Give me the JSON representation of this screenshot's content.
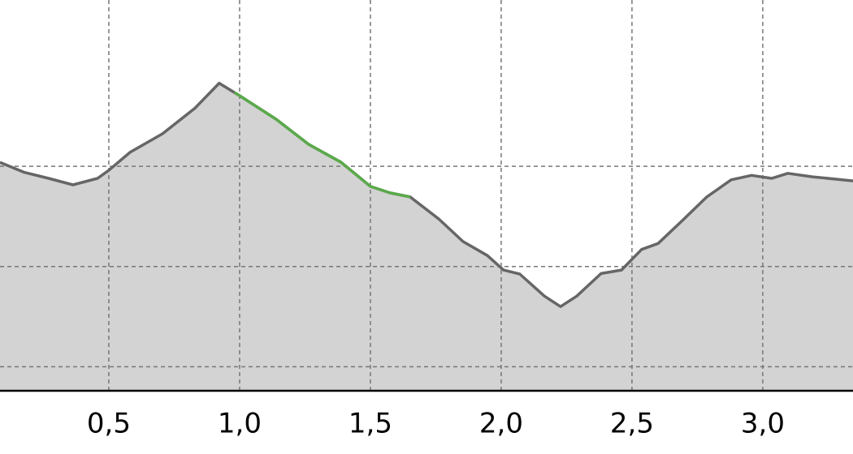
{
  "chart_data": {
    "type": "area",
    "x": [
      0.084,
      0.177,
      0.27,
      0.363,
      0.457,
      0.5,
      0.581,
      0.705,
      0.829,
      0.922,
      1.0,
      1.14,
      1.264,
      1.388,
      1.5,
      1.575,
      1.652,
      1.761,
      1.854,
      1.947,
      2.009,
      2.071,
      2.165,
      2.227,
      2.289,
      2.382,
      2.46,
      2.537,
      2.6,
      2.693,
      2.786,
      2.879,
      2.957,
      3.034,
      3.096,
      3.19,
      3.345
    ],
    "values": [
      304,
      294,
      288,
      281.5,
      288,
      296,
      314,
      332.5,
      358,
      383,
      370.5,
      347,
      322,
      304,
      280,
      273.5,
      269.5,
      247.5,
      225,
      211,
      196.5,
      192.5,
      170.5,
      160,
      170.5,
      193,
      196.5,
      217,
      223,
      246,
      269.5,
      286.5,
      291,
      288,
      293,
      289.5,
      285.5
    ],
    "color": "#666666",
    "fill_color": "#d3d3d3",
    "highlight_xlim": [
      0.98,
      1.652
    ],
    "highlight_color": "#5aaa4a",
    "xlim": [
      0.084,
      3.345
    ],
    "xticks": [
      {
        "value": 0.5,
        "label": "0,5"
      },
      {
        "value": 1.0,
        "label": "1,0"
      },
      {
        "value": 1.5,
        "label": "1,5"
      },
      {
        "value": 2.0,
        "label": "2,0"
      },
      {
        "value": 2.5,
        "label": "2,5"
      },
      {
        "value": 3.0,
        "label": "3,0"
      }
    ],
    "ylim": [
      76,
      466
    ],
    "yticks": [
      100,
      200,
      300
    ],
    "grid": true
  }
}
